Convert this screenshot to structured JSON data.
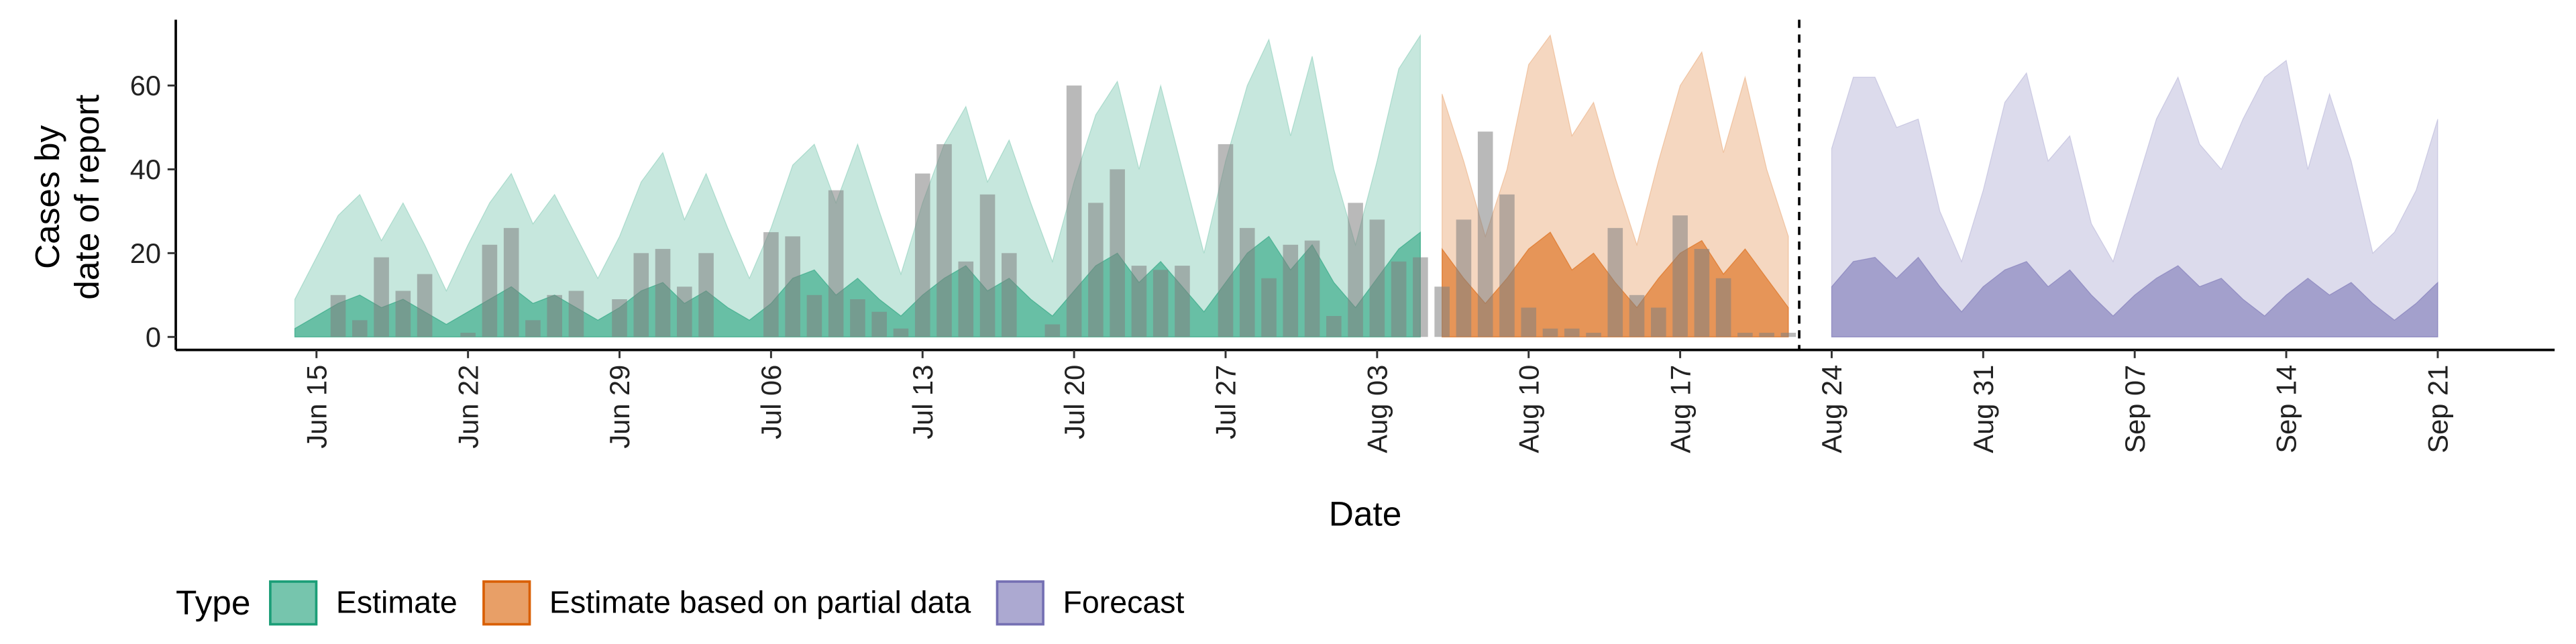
{
  "chart_data": {
    "type": "ribbon",
    "xlabel": "Date",
    "ylabel": [
      "Cases by",
      "date of report"
    ],
    "legend_title": "Type",
    "legend": "bottom-left",
    "xlim": [
      -6.5,
      103.4
    ],
    "ylim": [
      -3.1,
      75.7
    ],
    "yticks": [
      0,
      20,
      40,
      60
    ],
    "xticks": [
      {
        "value": 0,
        "label": "Jun 15"
      },
      {
        "value": 7,
        "label": "Jun 22"
      },
      {
        "value": 14,
        "label": "Jun 29"
      },
      {
        "value": 21,
        "label": "Jul 06"
      },
      {
        "value": 28,
        "label": "Jul 13"
      },
      {
        "value": 35,
        "label": "Jul 20"
      },
      {
        "value": 42,
        "label": "Jul 27"
      },
      {
        "value": 49,
        "label": "Aug 03"
      },
      {
        "value": 56,
        "label": "Aug 10"
      },
      {
        "value": 63,
        "label": "Aug 17"
      },
      {
        "value": 70,
        "label": "Aug 24"
      },
      {
        "value": 77,
        "label": "Aug 31"
      },
      {
        "value": 84,
        "label": "Sep 07"
      },
      {
        "value": 91,
        "label": "Sep 14"
      },
      {
        "value": 98,
        "label": "Sep 21"
      }
    ],
    "vline": 68.5,
    "series": [
      {
        "name": "Estimate",
        "color": "#1b9e77",
        "x": [
          -1,
          0,
          1,
          2,
          3,
          4,
          5,
          6,
          7,
          8,
          9,
          10,
          11,
          12,
          13,
          14,
          15,
          16,
          17,
          18,
          19,
          20,
          21,
          22,
          23,
          24,
          25,
          26,
          27,
          28,
          29,
          30,
          31,
          32,
          33,
          34,
          35,
          36,
          37,
          38,
          39,
          40,
          41,
          42,
          43,
          44,
          45,
          46,
          47,
          48,
          49,
          50,
          51
        ],
        "upper": [
          9,
          19,
          29,
          34,
          23,
          32,
          22,
          11,
          22,
          32,
          39,
          27,
          34,
          24,
          14,
          24,
          37,
          44,
          28,
          39,
          26,
          14,
          26,
          41,
          46,
          32,
          46,
          30,
          15,
          32,
          46,
          55,
          37,
          47,
          32,
          18,
          37,
          53,
          61,
          40,
          60,
          40,
          20,
          42,
          60,
          71,
          48,
          67,
          40,
          22,
          42,
          64,
          72
        ],
        "mid": [
          2,
          5,
          8,
          10,
          7,
          9,
          6,
          3,
          6,
          9,
          12,
          8,
          10,
          7,
          4,
          7,
          11,
          13,
          8,
          11,
          7,
          4,
          8,
          14,
          16,
          10,
          14,
          9,
          5,
          10,
          14,
          17,
          11,
          14,
          9,
          5,
          11,
          17,
          20,
          13,
          18,
          12,
          6,
          13,
          20,
          24,
          16,
          22,
          13,
          7,
          14,
          21,
          25
        ]
      },
      {
        "name": "Estimate based on partial data",
        "color": "#d95f02",
        "x": [
          52,
          53,
          54,
          55,
          56,
          57,
          58,
          59,
          60,
          61,
          62,
          63,
          64,
          65,
          66,
          67,
          68
        ],
        "upper": [
          58,
          42,
          24,
          40,
          65,
          72,
          48,
          56,
          38,
          22,
          42,
          60,
          68,
          44,
          62,
          40,
          24
        ],
        "mid": [
          21,
          14,
          8,
          14,
          21,
          25,
          16,
          20,
          13,
          7,
          14,
          20,
          23,
          15,
          21,
          14,
          7
        ]
      },
      {
        "name": "Forecast",
        "color": "#7570b3",
        "x": [
          70,
          71,
          72,
          73,
          74,
          75,
          76,
          77,
          78,
          79,
          80,
          81,
          82,
          83,
          84,
          85,
          86,
          87,
          88,
          89,
          90,
          91,
          92,
          93,
          94,
          95,
          96,
          97,
          98
        ],
        "upper": [
          45,
          62,
          62,
          50,
          52,
          30,
          18,
          35,
          56,
          63,
          42,
          48,
          27,
          18,
          35,
          52,
          62,
          46,
          40,
          52,
          62,
          66,
          40,
          58,
          42,
          20,
          25,
          35,
          52
        ],
        "mid": [
          12,
          18,
          19,
          14,
          19,
          12,
          6,
          12,
          16,
          18,
          12,
          16,
          10,
          5,
          10,
          14,
          17,
          12,
          14,
          9,
          5,
          10,
          14,
          10,
          13,
          8,
          4,
          8,
          13
        ]
      }
    ],
    "bars": {
      "color": "#808080",
      "x": [
        1,
        2,
        3,
        4,
        5,
        6,
        7,
        8,
        9,
        10,
        11,
        12,
        13,
        14,
        15,
        16,
        17,
        18,
        19,
        20,
        21,
        22,
        23,
        24,
        25,
        26,
        27,
        28,
        29,
        30,
        31,
        32,
        33,
        34,
        35,
        36,
        37,
        38,
        39,
        40,
        41,
        42,
        43,
        44,
        45,
        46,
        47,
        48,
        49,
        50,
        51,
        52,
        53,
        54,
        55,
        56,
        57,
        58,
        59,
        60,
        61,
        62,
        63,
        64,
        65,
        66,
        67,
        68
      ],
      "values": [
        10,
        4,
        19,
        11,
        15,
        0,
        1,
        22,
        26,
        4,
        10,
        11,
        0,
        9,
        20,
        21,
        12,
        20,
        0,
        0,
        25,
        24,
        10,
        35,
        9,
        6,
        2,
        39,
        46,
        18,
        34,
        20,
        0,
        3,
        60,
        32,
        40,
        17,
        16,
        17,
        0,
        46,
        26,
        14,
        22,
        23,
        5,
        32,
        28,
        18,
        19,
        12,
        28,
        49,
        34,
        7,
        2,
        2,
        1,
        26,
        10,
        7,
        29,
        21,
        14,
        1,
        1,
        1
      ]
    }
  }
}
